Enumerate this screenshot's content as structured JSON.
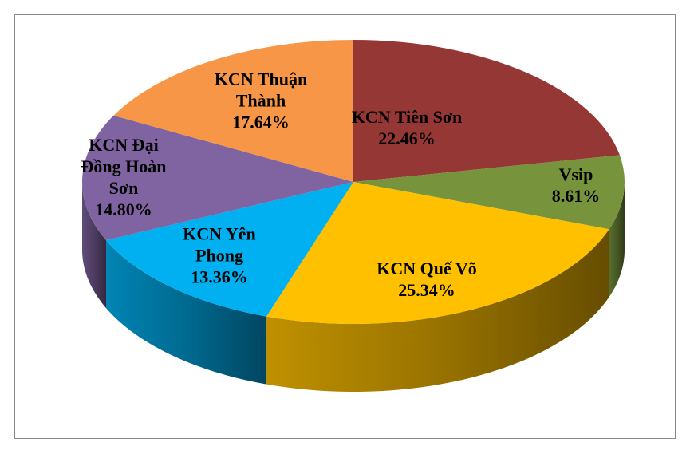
{
  "chart_data": {
    "type": "pie",
    "categories": [
      "KCN Tiên Sơn",
      "Vsip",
      "KCN Quế Võ",
      "KCN Yên Phong",
      "KCN Đại Đồng Hoàn Sơn",
      "KCN Thuận Thành"
    ],
    "values": [
      22.46,
      8.61,
      25.34,
      13.36,
      14.8,
      17.64
    ],
    "value_labels": [
      "22.46%",
      "8.61%",
      "25.34%",
      "13.36%",
      "14.80%",
      "17.64%"
    ],
    "colors": [
      "#953735",
      "#77933c",
      "#ffc000",
      "#00b0f0",
      "#8064a2",
      "#f79646"
    ]
  }
}
